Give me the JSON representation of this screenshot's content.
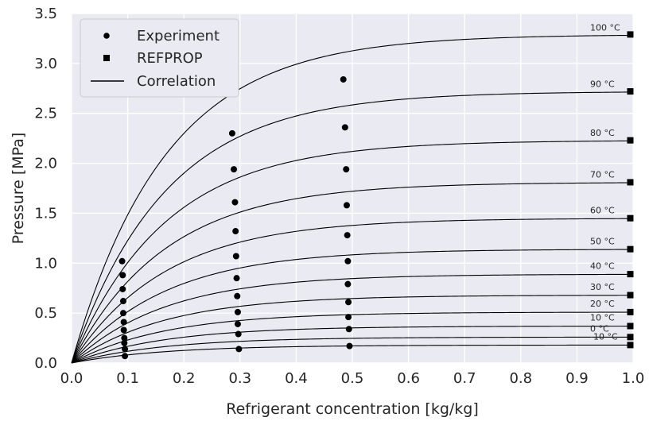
{
  "chart_data": {
    "type": "line",
    "xlabel": "Refrigerant concentration [kg/kg]",
    "ylabel": "Pressure [MPa]",
    "xlim": [
      0.0,
      1.0
    ],
    "ylim": [
      0.0,
      3.5
    ],
    "xticks": [
      "0.0",
      "0.1",
      "0.2",
      "0.3",
      "0.4",
      "0.5",
      "0.6",
      "0.7",
      "0.8",
      "0.9",
      "1.0"
    ],
    "yticks": [
      "0.0",
      "0.5",
      "1.0",
      "1.5",
      "2.0",
      "2.5",
      "3.0",
      "3.5"
    ],
    "grid": true,
    "background": "#eaeaf2",
    "legend": {
      "position": "top-left",
      "entries": [
        {
          "label": "Experiment",
          "marker": "circle"
        },
        {
          "label": "REFPROP",
          "marker": "square"
        },
        {
          "label": "Correlation",
          "marker": "line"
        }
      ]
    },
    "curves": [
      {
        "label": "-10 °C",
        "pmax": 0.18,
        "k": 6.0
      },
      {
        "label": "0 °C",
        "pmax": 0.26,
        "k": 6.0
      },
      {
        "label": "10 °C",
        "pmax": 0.37,
        "k": 6.0
      },
      {
        "label": "20 °C",
        "pmax": 0.51,
        "k": 6.0
      },
      {
        "label": "30 °C",
        "pmax": 0.68,
        "k": 6.0
      },
      {
        "label": "40 °C",
        "pmax": 0.89,
        "k": 6.0
      },
      {
        "label": "50 °C",
        "pmax": 1.14,
        "k": 6.0
      },
      {
        "label": "60 °C",
        "pmax": 1.45,
        "k": 6.0
      },
      {
        "label": "70 °C",
        "pmax": 1.81,
        "k": 6.0
      },
      {
        "label": "80 °C",
        "pmax": 2.23,
        "k": 6.0
      },
      {
        "label": "90 °C",
        "pmax": 2.72,
        "k": 6.0
      },
      {
        "label": "100 °C",
        "pmax": 3.29,
        "k": 6.0
      }
    ],
    "experiment": [
      {
        "x": 0.095,
        "y": 0.07
      },
      {
        "x": 0.095,
        "y": 0.14
      },
      {
        "x": 0.094,
        "y": 0.2
      },
      {
        "x": 0.094,
        "y": 0.25
      },
      {
        "x": 0.093,
        "y": 0.33
      },
      {
        "x": 0.093,
        "y": 0.41
      },
      {
        "x": 0.092,
        "y": 0.5
      },
      {
        "x": 0.092,
        "y": 0.62
      },
      {
        "x": 0.091,
        "y": 0.74
      },
      {
        "x": 0.091,
        "y": 0.88
      },
      {
        "x": 0.09,
        "y": 1.02
      },
      {
        "x": 0.298,
        "y": 0.14
      },
      {
        "x": 0.297,
        "y": 0.29
      },
      {
        "x": 0.296,
        "y": 0.39
      },
      {
        "x": 0.296,
        "y": 0.51
      },
      {
        "x": 0.295,
        "y": 0.67
      },
      {
        "x": 0.294,
        "y": 0.85
      },
      {
        "x": 0.293,
        "y": 1.07
      },
      {
        "x": 0.292,
        "y": 1.32
      },
      {
        "x": 0.291,
        "y": 1.61
      },
      {
        "x": 0.289,
        "y": 1.94
      },
      {
        "x": 0.286,
        "y": 2.3
      },
      {
        "x": 0.495,
        "y": 0.17
      },
      {
        "x": 0.494,
        "y": 0.34
      },
      {
        "x": 0.493,
        "y": 0.46
      },
      {
        "x": 0.493,
        "y": 0.61
      },
      {
        "x": 0.492,
        "y": 0.79
      },
      {
        "x": 0.492,
        "y": 1.02
      },
      {
        "x": 0.491,
        "y": 1.28
      },
      {
        "x": 0.49,
        "y": 1.58
      },
      {
        "x": 0.489,
        "y": 1.94
      },
      {
        "x": 0.487,
        "y": 2.36
      },
      {
        "x": 0.484,
        "y": 2.84
      }
    ],
    "refprop": [
      {
        "x": 0.995,
        "y": 0.18
      },
      {
        "x": 0.995,
        "y": 0.26
      },
      {
        "x": 0.995,
        "y": 0.37
      },
      {
        "x": 0.995,
        "y": 0.51
      },
      {
        "x": 0.995,
        "y": 0.68
      },
      {
        "x": 0.995,
        "y": 0.89
      },
      {
        "x": 0.995,
        "y": 1.14
      },
      {
        "x": 0.995,
        "y": 1.45
      },
      {
        "x": 0.995,
        "y": 1.81
      },
      {
        "x": 0.995,
        "y": 2.23
      },
      {
        "x": 0.995,
        "y": 2.72
      },
      {
        "x": 0.995,
        "y": 3.29
      }
    ]
  }
}
